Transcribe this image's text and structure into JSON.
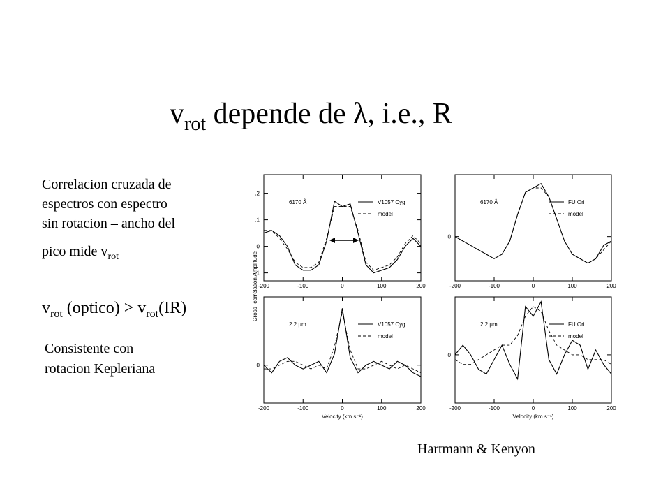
{
  "slide": {
    "title": [
      "v",
      "rot",
      " depende de λ, i.e., R"
    ],
    "paragraph1": [
      "Correlacion cruzada de",
      "espectros con espectro",
      "sin rotacion – ancho del",
      "pico mide v",
      "rot"
    ],
    "paragraph2": [
      "v",
      "rot",
      " (optico) > v",
      "rot",
      "(IR)"
    ],
    "paragraph3": [
      "Consistente con",
      "rotacion Kepleriana"
    ],
    "credit": "Hartmann & Kenyon"
  },
  "chart_data": [
    {
      "type": "line",
      "annotation": "6170 Å",
      "ylabel": "Cross−correlation Amplitude",
      "x": [
        -200,
        -180,
        -160,
        -140,
        -120,
        -100,
        -80,
        -60,
        -40,
        -20,
        0,
        20,
        40,
        60,
        80,
        100,
        120,
        140,
        160,
        180,
        200
      ],
      "xlim": [
        -200,
        200
      ],
      "xticks": [
        -200,
        -100,
        0,
        100,
        200
      ],
      "ylim": [
        -0.13,
        0.27
      ],
      "yticks": [
        {
          "value": 0.2,
          "label": ".2"
        },
        {
          "value": 0.1,
          "label": ".1"
        },
        0,
        {
          "value": -0.1,
          "label": "-.1"
        }
      ],
      "series": [
        {
          "name": "V1057 Cyg",
          "color": "#000000",
          "style": "solid",
          "values": [
            0.05,
            0.06,
            0.04,
            0.0,
            -0.07,
            -0.09,
            -0.09,
            -0.07,
            0.02,
            0.17,
            0.15,
            0.16,
            0.05,
            -0.07,
            -0.1,
            -0.09,
            -0.08,
            -0.05,
            0.0,
            0.03,
            0.0
          ]
        },
        {
          "name": "model",
          "color": "#000000",
          "style": "dashed",
          "values": [
            0.06,
            0.06,
            0.03,
            -0.01,
            -0.06,
            -0.08,
            -0.08,
            -0.06,
            0.03,
            0.15,
            0.15,
            0.15,
            0.06,
            -0.06,
            -0.09,
            -0.08,
            -0.07,
            -0.04,
            0.01,
            0.04,
            0.01
          ]
        }
      ]
    },
    {
      "type": "line",
      "annotation": "6170 Å",
      "x": [
        -200,
        -180,
        -160,
        -140,
        -120,
        -100,
        -80,
        -60,
        -40,
        -20,
        0,
        20,
        40,
        60,
        80,
        100,
        120,
        140,
        160,
        180,
        200
      ],
      "xlim": [
        -200,
        200
      ],
      "xticks": [
        -200,
        -100,
        0,
        100,
        200
      ],
      "ylim": [
        -0.1,
        0.14
      ],
      "yticks": [
        0
      ],
      "series": [
        {
          "name": "FU Ori",
          "color": "#000000",
          "style": "solid",
          "values": [
            0.0,
            -0.01,
            -0.02,
            -0.03,
            -0.04,
            -0.05,
            -0.04,
            -0.01,
            0.05,
            0.1,
            0.11,
            0.12,
            0.09,
            0.04,
            -0.01,
            -0.04,
            -0.05,
            -0.06,
            -0.05,
            -0.02,
            -0.01
          ]
        },
        {
          "name": "model",
          "color": "#000000",
          "style": "dashed",
          "values": [
            0.0,
            -0.01,
            -0.02,
            -0.03,
            -0.04,
            -0.05,
            -0.04,
            -0.01,
            0.05,
            0.1,
            0.11,
            0.11,
            0.09,
            0.04,
            -0.01,
            -0.04,
            -0.05,
            -0.06,
            -0.05,
            -0.03,
            -0.01
          ]
        }
      ]
    },
    {
      "type": "line",
      "annotation": "2.2 μm",
      "xlabel": "Velocity (km s⁻¹)",
      "x": [
        -200,
        -180,
        -160,
        -140,
        -120,
        -100,
        -80,
        -60,
        -40,
        -20,
        0,
        20,
        40,
        60,
        80,
        100,
        120,
        140,
        160,
        180,
        200
      ],
      "xlim": [
        -200,
        200
      ],
      "xticks": [
        -200,
        -100,
        0,
        100,
        200
      ],
      "ylim": [
        -0.1,
        0.18
      ],
      "yticks": [
        0
      ],
      "series": [
        {
          "name": "V1057 Cyg",
          "color": "#000000",
          "style": "solid",
          "values": [
            0.0,
            -0.02,
            0.01,
            0.02,
            0.0,
            -0.01,
            0.0,
            0.01,
            -0.02,
            0.03,
            0.15,
            0.02,
            -0.02,
            0.0,
            0.01,
            0.0,
            -0.01,
            0.01,
            0.0,
            -0.02,
            -0.03
          ]
        },
        {
          "name": "model",
          "color": "#000000",
          "style": "dashed",
          "values": [
            -0.01,
            -0.01,
            0.0,
            0.01,
            0.01,
            0.0,
            -0.01,
            0.0,
            -0.01,
            0.05,
            0.14,
            0.04,
            -0.01,
            -0.01,
            0.0,
            0.01,
            0.0,
            -0.01,
            0.0,
            -0.01,
            -0.02
          ]
        }
      ]
    },
    {
      "type": "line",
      "annotation": "2.2 μm",
      "xlabel": "Velocity (km s⁻¹)",
      "x": [
        -200,
        -180,
        -160,
        -140,
        -120,
        -100,
        -80,
        -60,
        -40,
        -20,
        0,
        20,
        40,
        60,
        80,
        100,
        120,
        140,
        160,
        180,
        200
      ],
      "xlim": [
        -200,
        200
      ],
      "xticks": [
        -200,
        -100,
        0,
        100,
        200
      ],
      "ylim": [
        -0.1,
        0.12
      ],
      "yticks": [
        0
      ],
      "series": [
        {
          "name": "FU Ori",
          "color": "#000000",
          "style": "solid",
          "values": [
            0.0,
            0.02,
            0.0,
            -0.03,
            -0.04,
            -0.01,
            0.02,
            -0.02,
            -0.05,
            0.1,
            0.08,
            0.11,
            -0.01,
            -0.04,
            0.0,
            0.03,
            0.02,
            -0.03,
            0.01,
            -0.02,
            -0.04
          ]
        },
        {
          "name": "model",
          "color": "#000000",
          "style": "dashed",
          "values": [
            -0.01,
            -0.02,
            -0.02,
            -0.01,
            0.0,
            0.01,
            0.02,
            0.02,
            0.04,
            0.08,
            0.1,
            0.09,
            0.05,
            0.02,
            0.01,
            0.0,
            0.0,
            -0.01,
            -0.01,
            -0.01,
            -0.02
          ]
        }
      ]
    }
  ]
}
